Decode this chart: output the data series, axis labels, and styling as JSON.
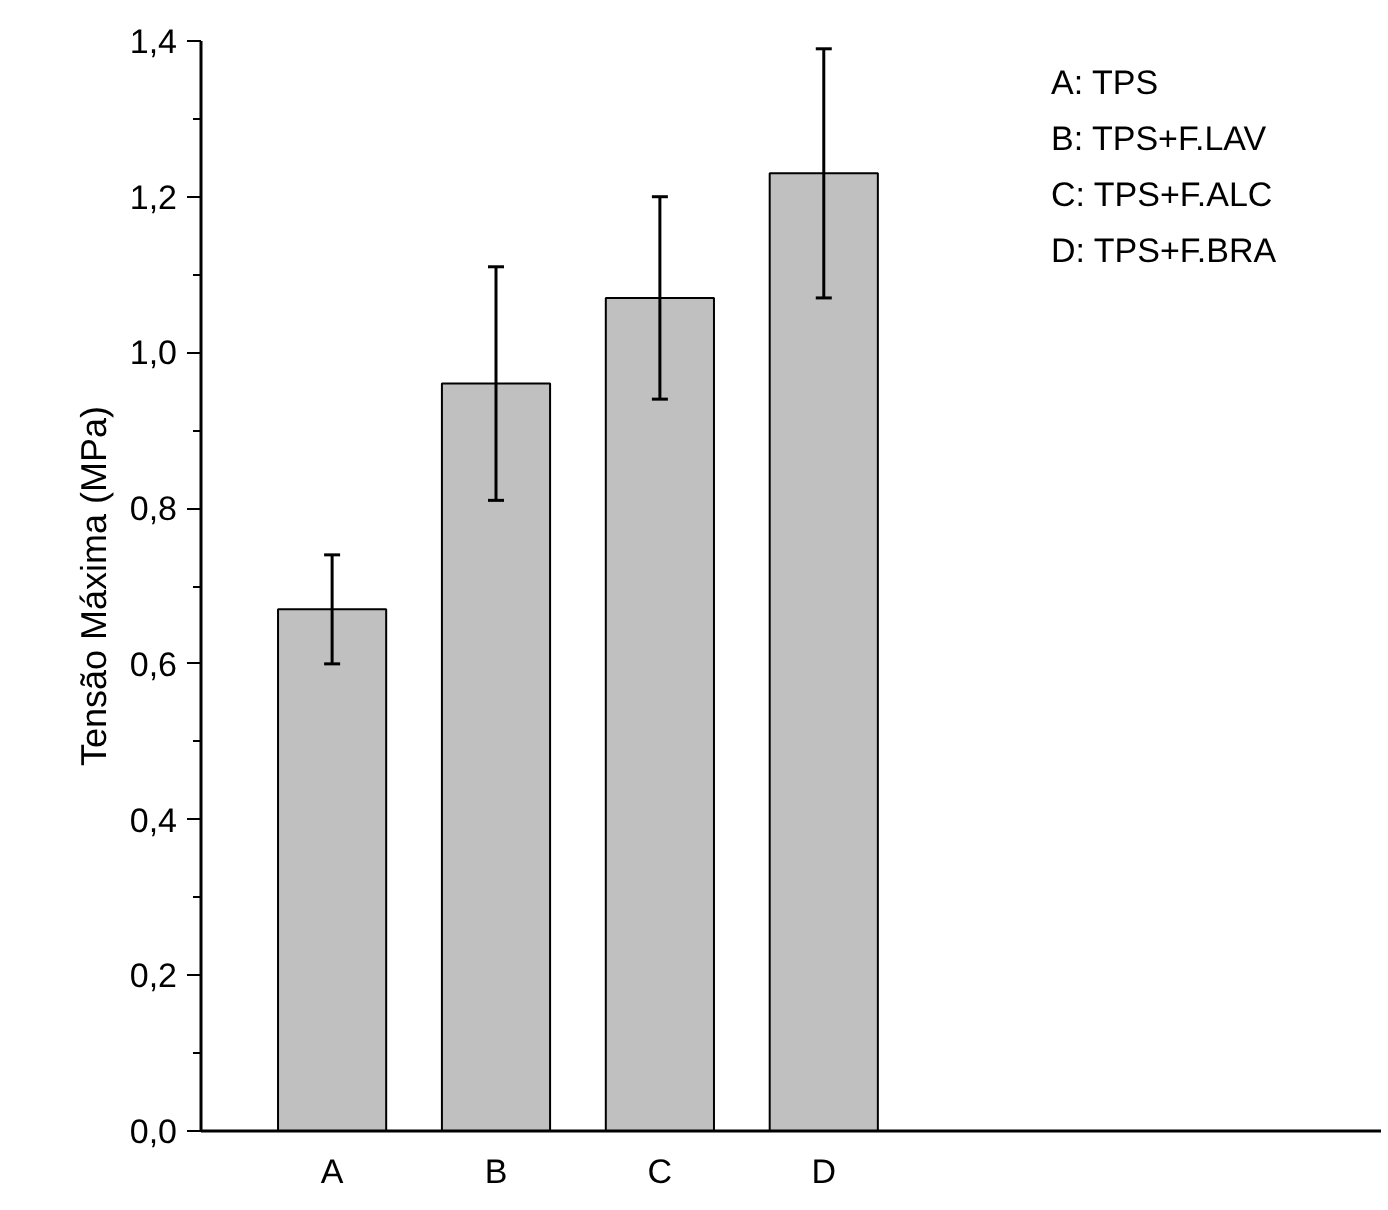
{
  "chart_data": {
    "type": "bar",
    "ylabel": "Tensão Máxima (MPa)",
    "categories": [
      "A",
      "B",
      "C",
      "D"
    ],
    "values": [
      0.67,
      0.96,
      1.07,
      1.23
    ],
    "errors": [
      [
        0.6,
        0.74
      ],
      [
        0.81,
        1.11
      ],
      [
        0.94,
        1.2
      ],
      [
        1.07,
        1.39
      ]
    ],
    "color": "#c0c0c0",
    "ylim": [
      0,
      1.4
    ],
    "yticks": [
      {
        "value": 0,
        "label": "0,0"
      },
      {
        "value": 0.2,
        "label": "0,2"
      },
      {
        "value": 0.4,
        "label": "0,4"
      },
      {
        "value": 0.6,
        "label": "0,6"
      },
      {
        "value": 0.8,
        "label": "0,8"
      },
      {
        "value": 1.0,
        "label": "1,0"
      },
      {
        "value": 1.2,
        "label": "1,2"
      },
      {
        "value": 1.4,
        "label": "1,4"
      }
    ],
    "annotations": [
      "A: TPS",
      "B: TPS+F.LAV",
      "C: TPS+F.ALC",
      "D: TPS+F.BRA"
    ],
    "grid": false
  }
}
